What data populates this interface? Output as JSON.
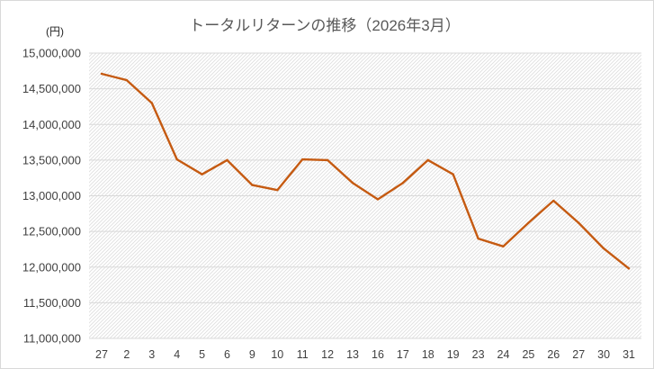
{
  "chart_data": {
    "type": "line",
    "title": "トータルリターンの推移（2026年3月）",
    "unit_label": "(円)",
    "categories": [
      "27",
      "2",
      "3",
      "4",
      "5",
      "6",
      "9",
      "10",
      "11",
      "12",
      "13",
      "16",
      "17",
      "18",
      "19",
      "23",
      "24",
      "25",
      "26",
      "27",
      "30",
      "31"
    ],
    "series": [
      {
        "values": [
          14710000,
          14620000,
          14300000,
          13510000,
          13300000,
          13500000,
          13150000,
          13080000,
          13510000,
          13500000,
          13180000,
          12950000,
          13180000,
          13500000,
          13300000,
          12400000,
          12290000,
          12620000,
          12930000,
          12620000,
          12260000,
          11980000
        ],
        "color": "#c55a11"
      }
    ],
    "yticks": [
      "15,000,000",
      "14,500,000",
      "14,000,000",
      "13,500,000",
      "13,000,000",
      "12,500,000",
      "12,000,000",
      "11,500,000",
      "11,000,000"
    ],
    "ylim": [
      11000000,
      15000000
    ],
    "grid": true
  }
}
